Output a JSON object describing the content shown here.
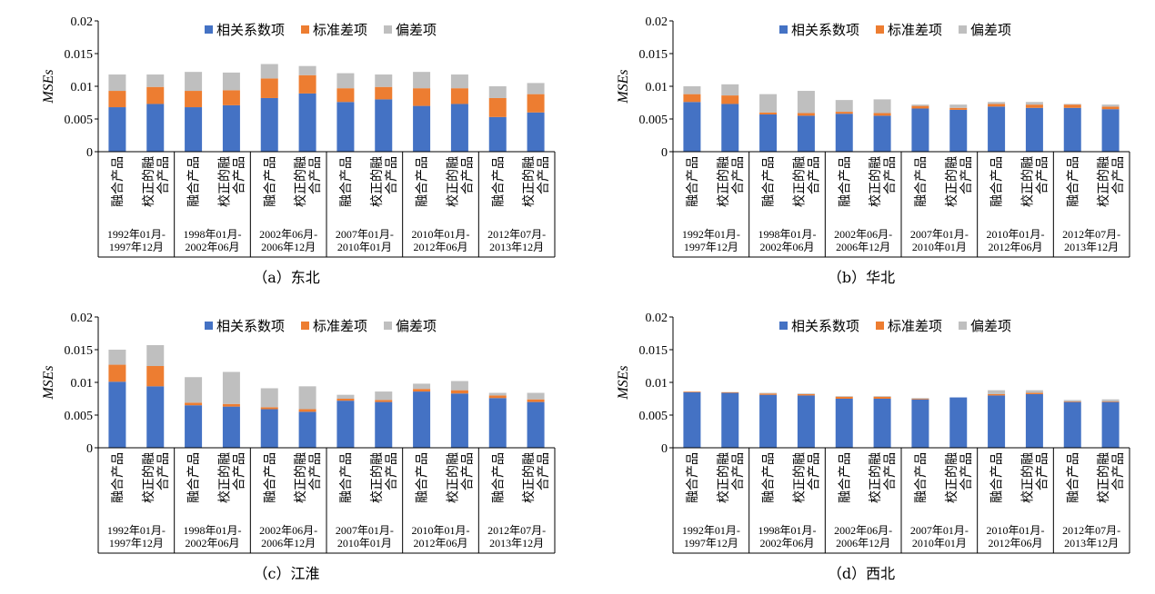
{
  "legend": {
    "items": [
      {
        "label": "相关系数项",
        "color": "#4472c4"
      },
      {
        "label": "标准差项",
        "color": "#ed7d31"
      },
      {
        "label": "偏差项",
        "color": "#bfbfbf"
      }
    ]
  },
  "chart_data": [
    {
      "type": "bar",
      "stacked": true,
      "caption": "（a）东北",
      "ylabel": "MSEs",
      "ylim": [
        0,
        0.02
      ],
      "yticks": [
        "0",
        "0.005",
        "0.01",
        "0.015",
        "0.02"
      ],
      "categories": [
        "融合产品",
        "校正的融合产品",
        "融合产品",
        "校正的融合产品",
        "融合产品",
        "校正的融合产品",
        "融合产品",
        "校正的融合产品",
        "融合产品",
        "校正的融合产品",
        "融合产品",
        "校正的融合产品"
      ],
      "periods": [
        [
          "1992年01月-",
          "1997年12月"
        ],
        [
          "1998年01月-",
          "2002年06月"
        ],
        [
          "2002年06月-",
          "2006年12月"
        ],
        [
          "2007年01月-",
          "2010年01月"
        ],
        [
          "2010年01月-",
          "2012年06月"
        ],
        [
          "2012年07月-",
          "2013年12月"
        ]
      ],
      "series": [
        {
          "name": "相关系数项",
          "values": [
            0.0068,
            0.0073,
            0.0068,
            0.0071,
            0.0082,
            0.0089,
            0.0076,
            0.008,
            0.007,
            0.0073,
            0.0053,
            0.006
          ]
        },
        {
          "name": "标准差项",
          "values": [
            0.0025,
            0.0026,
            0.0025,
            0.0023,
            0.003,
            0.0028,
            0.0021,
            0.0019,
            0.0027,
            0.0024,
            0.0029,
            0.0028
          ]
        },
        {
          "name": "偏差项",
          "values": [
            0.0025,
            0.0019,
            0.0029,
            0.0027,
            0.0022,
            0.0014,
            0.0023,
            0.0019,
            0.0025,
            0.0021,
            0.0018,
            0.0017
          ]
        }
      ]
    },
    {
      "type": "bar",
      "stacked": true,
      "caption": "（b）华北",
      "ylabel": "MSEs",
      "ylim": [
        0,
        0.02
      ],
      "yticks": [
        "0",
        "0.005",
        "0.01",
        "0.015",
        "0.02"
      ],
      "categories": [
        "融合产品",
        "校正的融合产品",
        "融合产品",
        "校正的融合产品",
        "融合产品",
        "校正的融合产品",
        "融合产品",
        "校正的融合产品",
        "融合产品",
        "校正的融合产品",
        "融合产品",
        "校正的融合产品"
      ],
      "periods": [
        [
          "1992年01月-",
          "1997年12月"
        ],
        [
          "1998年01月-",
          "2002年06月"
        ],
        [
          "2002年06月-",
          "2006年12月"
        ],
        [
          "2007年01月-",
          "2010年01月"
        ],
        [
          "2010年01月-",
          "2012年06月"
        ],
        [
          "2012年07月-",
          "2013年12月"
        ]
      ],
      "series": [
        {
          "name": "相关系数项",
          "values": [
            0.0076,
            0.0073,
            0.0057,
            0.0055,
            0.0058,
            0.0055,
            0.0066,
            0.0064,
            0.0069,
            0.0067,
            0.0067,
            0.0065
          ]
        },
        {
          "name": "标准差项",
          "values": [
            0.0012,
            0.0013,
            0.0003,
            0.0004,
            0.0003,
            0.0004,
            0.0004,
            0.0003,
            0.0004,
            0.0005,
            0.0005,
            0.0004
          ]
        },
        {
          "name": "偏差项",
          "values": [
            0.0012,
            0.0017,
            0.0028,
            0.0034,
            0.0018,
            0.0021,
            0.0002,
            0.0005,
            0.0003,
            0.0004,
            0.0001,
            0.0003
          ]
        }
      ]
    },
    {
      "type": "bar",
      "stacked": true,
      "caption": "（c）江淮",
      "ylabel": "MSEs",
      "ylim": [
        0,
        0.02
      ],
      "yticks": [
        "0",
        "0.005",
        "0.01",
        "0.015",
        "0.02"
      ],
      "categories": [
        "融合产品",
        "校正的融合产品",
        "融合产品",
        "校正的融合产品",
        "融合产品",
        "校正的融合产品",
        "融合产品",
        "校正的融合产品",
        "融合产品",
        "校正的融合产品",
        "融合产品",
        "校正的融合产品"
      ],
      "periods": [
        [
          "1992年01月-",
          "1997年12月"
        ],
        [
          "1998年01月-",
          "2002年06月"
        ],
        [
          "2002年06月-",
          "2006年12月"
        ],
        [
          "2007年01月-",
          "2010年01月"
        ],
        [
          "2010年01月-",
          "2012年06月"
        ],
        [
          "2012年07月-",
          "2013年12月"
        ]
      ],
      "series": [
        {
          "name": "相关系数项",
          "values": [
            0.0101,
            0.0094,
            0.0065,
            0.0063,
            0.0059,
            0.0055,
            0.0072,
            0.007,
            0.0086,
            0.0083,
            0.0076,
            0.007
          ]
        },
        {
          "name": "标准差项",
          "values": [
            0.0026,
            0.0031,
            0.0004,
            0.0004,
            0.0003,
            0.0004,
            0.0003,
            0.0003,
            0.0004,
            0.0005,
            0.0004,
            0.0004
          ]
        },
        {
          "name": "偏差项",
          "values": [
            0.0023,
            0.0032,
            0.0039,
            0.0049,
            0.0029,
            0.0035,
            0.0006,
            0.0013,
            0.0008,
            0.0014,
            0.0004,
            0.001
          ]
        }
      ]
    },
    {
      "type": "bar",
      "stacked": true,
      "caption": "（d）西北",
      "ylabel": "MSEs",
      "ylim": [
        0,
        0.02
      ],
      "yticks": [
        "0",
        "0.005",
        "0.01",
        "0.015",
        "0.02"
      ],
      "categories": [
        "融合产品",
        "校正的融合产品",
        "融合产品",
        "校正的融合产品",
        "融合产品",
        "校正的融合产品",
        "融合产品",
        "校正的融合产品",
        "融合产品",
        "校正的融合产品",
        "融合产品",
        "校正的融合产品"
      ],
      "periods": [
        [
          "1992年01月-",
          "1997年12月"
        ],
        [
          "1998年01月-",
          "2002年06月"
        ],
        [
          "2002年06月-",
          "2006年12月"
        ],
        [
          "2007年01月-",
          "2010年01月"
        ],
        [
          "2010年01月-",
          "2012年06月"
        ],
        [
          "2012年07月-",
          "2013年12月"
        ]
      ],
      "series": [
        {
          "name": "相关系数项",
          "values": [
            0.0085,
            0.0084,
            0.0081,
            0.008,
            0.0075,
            0.0075,
            0.0074,
            0.0077,
            0.008,
            0.0082,
            0.007,
            0.007
          ]
        },
        {
          "name": "标准差项",
          "values": [
            0.0001,
            0.0001,
            0.0002,
            0.0002,
            0.0003,
            0.0003,
            0.0001,
            0.0,
            0.0002,
            0.0002,
            0.0001,
            0.0001
          ]
        },
        {
          "name": "偏差项",
          "values": [
            0.0,
            0.0,
            0.0001,
            0.0001,
            0.0001,
            0.0001,
            0.0001,
            0.0,
            0.0006,
            0.0004,
            0.0002,
            0.0003
          ]
        }
      ]
    }
  ]
}
